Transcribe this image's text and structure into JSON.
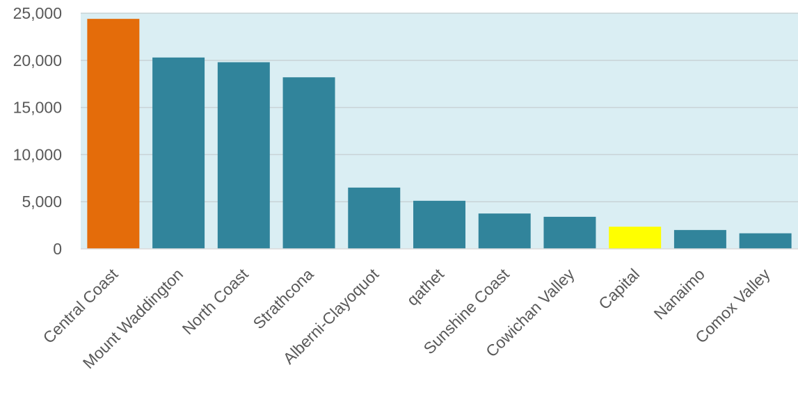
{
  "chart_data": {
    "type": "bar",
    "title": "",
    "xlabel": "",
    "ylabel": "",
    "ylim": [
      0,
      25000
    ],
    "yticks": [
      0,
      5000,
      10000,
      15000,
      20000,
      25000
    ],
    "ytick_labels": [
      "0",
      "5,000",
      "10,000",
      "15,000",
      "20,000",
      "25,000"
    ],
    "grid": true,
    "legend": "none",
    "categories": [
      "Central Coast",
      "Mount Waddington",
      "North Coast",
      "Strathcona",
      "Alberni-Clayoquot",
      "qathet",
      "Sunshine Coast",
      "Cowichan Valley",
      "Capital",
      "Nanaimo",
      "Comox Valley"
    ],
    "values": [
      24400,
      20300,
      19800,
      18200,
      6500,
      5100,
      3750,
      3400,
      2350,
      2000,
      1650
    ],
    "bar_colors": [
      "#e46c0a",
      "#31849b",
      "#31849b",
      "#31849b",
      "#31849b",
      "#31849b",
      "#31849b",
      "#31849b",
      "#ffff00",
      "#31849b",
      "#31849b"
    ],
    "plot_background": "#daeef3",
    "gridline_color": "#c8d3d6"
  }
}
